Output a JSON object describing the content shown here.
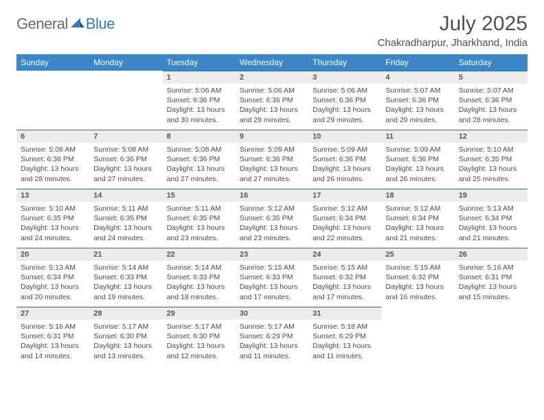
{
  "logo": {
    "general": "General",
    "blue": "Blue"
  },
  "title": "July 2025",
  "location": "Chakradharpur, Jharkhand, India",
  "colors": {
    "header_bg": "#3a86c8",
    "header_text": "#ffffff",
    "daynum_bg": "#ececec",
    "cell_border": "#2f6da8",
    "body_text": "#4a4a4a",
    "title_text": "#505050"
  },
  "weekdays": [
    "Sunday",
    "Monday",
    "Tuesday",
    "Wednesday",
    "Thursday",
    "Friday",
    "Saturday"
  ],
  "weeks": [
    [
      null,
      null,
      {
        "n": "1",
        "sr": "5:06 AM",
        "ss": "6:36 PM",
        "dl": "13 hours and 30 minutes."
      },
      {
        "n": "2",
        "sr": "5:06 AM",
        "ss": "6:36 PM",
        "dl": "13 hours and 29 minutes."
      },
      {
        "n": "3",
        "sr": "5:06 AM",
        "ss": "6:36 PM",
        "dl": "13 hours and 29 minutes."
      },
      {
        "n": "4",
        "sr": "5:07 AM",
        "ss": "6:36 PM",
        "dl": "13 hours and 29 minutes."
      },
      {
        "n": "5",
        "sr": "5:07 AM",
        "ss": "6:36 PM",
        "dl": "13 hours and 28 minutes."
      }
    ],
    [
      {
        "n": "6",
        "sr": "5:08 AM",
        "ss": "6:36 PM",
        "dl": "13 hours and 28 minutes."
      },
      {
        "n": "7",
        "sr": "5:08 AM",
        "ss": "6:36 PM",
        "dl": "13 hours and 27 minutes."
      },
      {
        "n": "8",
        "sr": "5:08 AM",
        "ss": "6:36 PM",
        "dl": "13 hours and 27 minutes."
      },
      {
        "n": "9",
        "sr": "5:09 AM",
        "ss": "6:36 PM",
        "dl": "13 hours and 27 minutes."
      },
      {
        "n": "10",
        "sr": "5:09 AM",
        "ss": "6:36 PM",
        "dl": "13 hours and 26 minutes."
      },
      {
        "n": "11",
        "sr": "5:09 AM",
        "ss": "6:36 PM",
        "dl": "13 hours and 26 minutes."
      },
      {
        "n": "12",
        "sr": "5:10 AM",
        "ss": "6:35 PM",
        "dl": "13 hours and 25 minutes."
      }
    ],
    [
      {
        "n": "13",
        "sr": "5:10 AM",
        "ss": "6:35 PM",
        "dl": "13 hours and 24 minutes."
      },
      {
        "n": "14",
        "sr": "5:11 AM",
        "ss": "6:35 PM",
        "dl": "13 hours and 24 minutes."
      },
      {
        "n": "15",
        "sr": "5:11 AM",
        "ss": "6:35 PM",
        "dl": "13 hours and 23 minutes."
      },
      {
        "n": "16",
        "sr": "5:12 AM",
        "ss": "6:35 PM",
        "dl": "13 hours and 23 minutes."
      },
      {
        "n": "17",
        "sr": "5:12 AM",
        "ss": "6:34 PM",
        "dl": "13 hours and 22 minutes."
      },
      {
        "n": "18",
        "sr": "5:12 AM",
        "ss": "6:34 PM",
        "dl": "13 hours and 21 minutes."
      },
      {
        "n": "19",
        "sr": "5:13 AM",
        "ss": "6:34 PM",
        "dl": "13 hours and 21 minutes."
      }
    ],
    [
      {
        "n": "20",
        "sr": "5:13 AM",
        "ss": "6:34 PM",
        "dl": "13 hours and 20 minutes."
      },
      {
        "n": "21",
        "sr": "5:14 AM",
        "ss": "6:33 PM",
        "dl": "13 hours and 19 minutes."
      },
      {
        "n": "22",
        "sr": "5:14 AM",
        "ss": "6:33 PM",
        "dl": "13 hours and 18 minutes."
      },
      {
        "n": "23",
        "sr": "5:15 AM",
        "ss": "6:33 PM",
        "dl": "13 hours and 17 minutes."
      },
      {
        "n": "24",
        "sr": "5:15 AM",
        "ss": "6:32 PM",
        "dl": "13 hours and 17 minutes."
      },
      {
        "n": "25",
        "sr": "5:15 AM",
        "ss": "6:32 PM",
        "dl": "13 hours and 16 minutes."
      },
      {
        "n": "26",
        "sr": "5:16 AM",
        "ss": "6:31 PM",
        "dl": "13 hours and 15 minutes."
      }
    ],
    [
      {
        "n": "27",
        "sr": "5:16 AM",
        "ss": "6:31 PM",
        "dl": "13 hours and 14 minutes."
      },
      {
        "n": "28",
        "sr": "5:17 AM",
        "ss": "6:30 PM",
        "dl": "13 hours and 13 minutes."
      },
      {
        "n": "29",
        "sr": "5:17 AM",
        "ss": "6:30 PM",
        "dl": "13 hours and 12 minutes."
      },
      {
        "n": "30",
        "sr": "5:17 AM",
        "ss": "6:29 PM",
        "dl": "13 hours and 11 minutes."
      },
      {
        "n": "31",
        "sr": "5:18 AM",
        "ss": "6:29 PM",
        "dl": "13 hours and 11 minutes."
      },
      null,
      null
    ]
  ],
  "labels": {
    "sunrise": "Sunrise:",
    "sunset": "Sunset:",
    "daylight": "Daylight:"
  }
}
